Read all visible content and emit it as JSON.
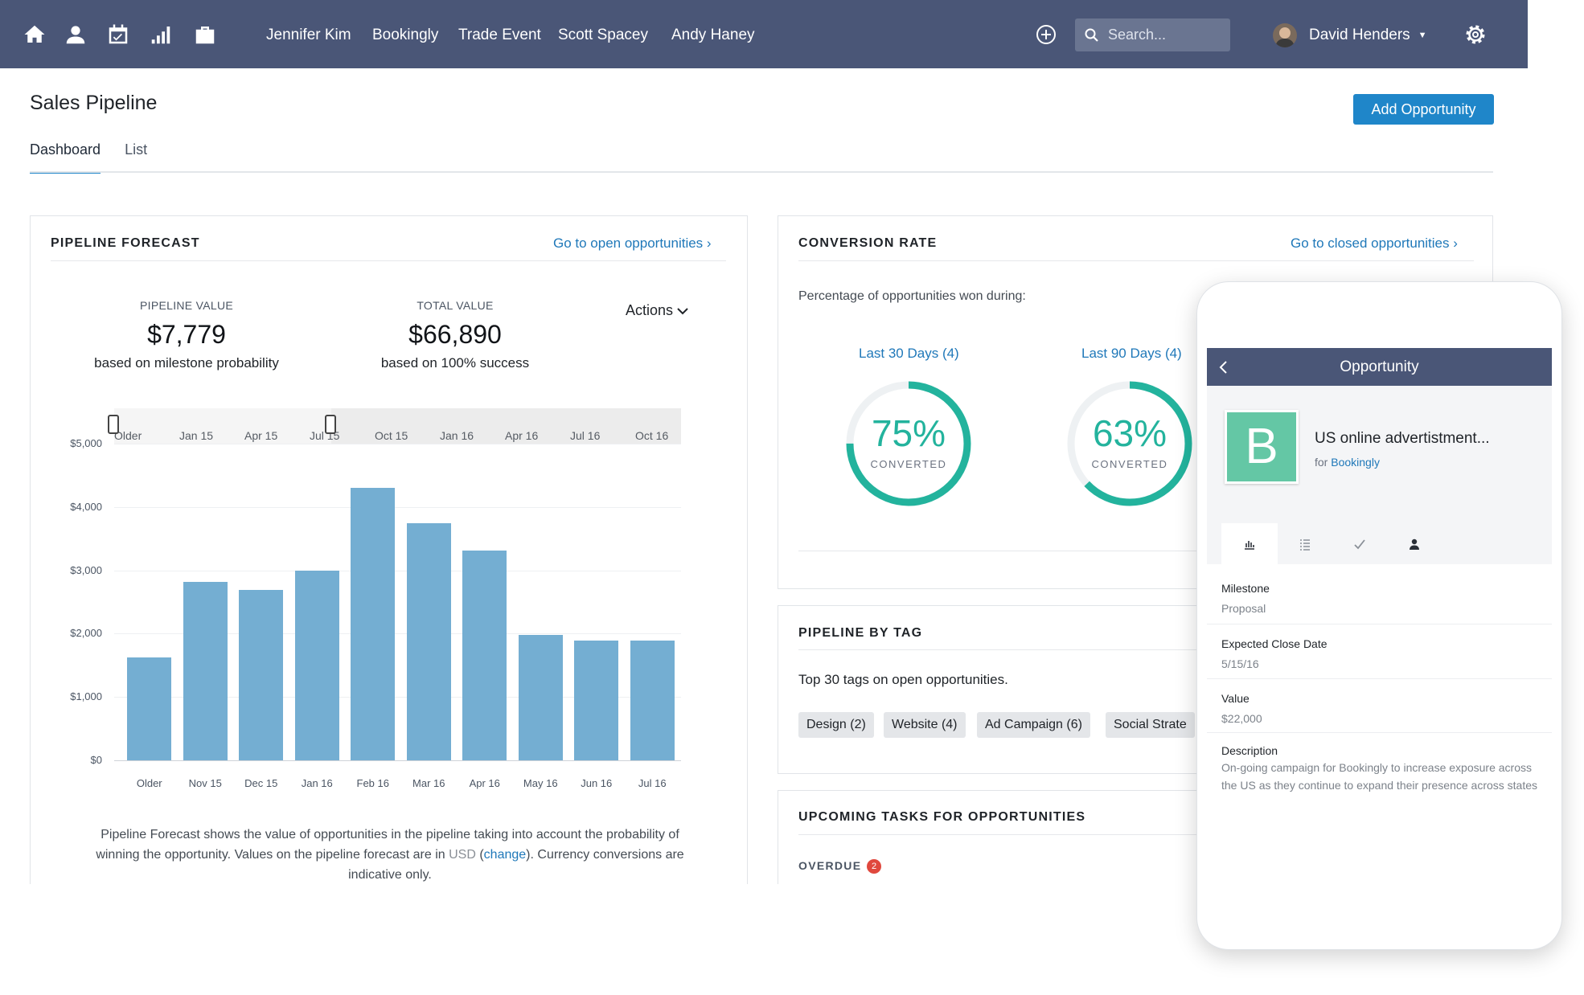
{
  "nav": {
    "icons": [
      "home-icon",
      "contacts-icon",
      "calendar-icon",
      "reports-icon",
      "deals-icon"
    ],
    "recent_items": [
      "Jennifer Kim",
      "Bookingly",
      "Trade Event",
      "Scott Spacey",
      "Andy Haney"
    ],
    "search_placeholder": "Search...",
    "user_name": "David Henders",
    "bar_color": "#4a5677"
  },
  "page": {
    "title": "Sales Pipeline",
    "add_button": "Add Opportunity",
    "tabs": [
      "Dashboard",
      "List"
    ],
    "active_tab": "Dashboard",
    "accent_color": "#1f86c9"
  },
  "forecast": {
    "title": "PIPELINE FORECAST",
    "link": "Go to open opportunities ›",
    "pipeline_label": "PIPELINE VALUE",
    "pipeline_value": "$7,779",
    "pipeline_sub": "based on milestone probability",
    "total_label": "TOTAL VALUE",
    "total_value": "$66,890",
    "total_sub": "based on 100% success",
    "actions": "Actions",
    "range_labels": [
      "Older",
      "Jan 15",
      "Apr 15",
      "Jul 15",
      "Oct 15",
      "Jan 16",
      "Apr 16",
      "Jul 16",
      "Oct 16"
    ],
    "caption_pre": "Pipeline Forecast shows the value of opportunities in the pipeline taking into account the probability of winning the opportunity. Values on the pipeline forecast are in ",
    "caption_currency": "USD",
    "caption_change": "change",
    "caption_post": ". Currency conversions are indicative only."
  },
  "chart_data": {
    "type": "bar",
    "categories": [
      "Older",
      "Nov 15",
      "Dec 15",
      "Jan 16",
      "Feb 16",
      "Mar 16",
      "Apr 16",
      "May 16",
      "Jun 16",
      "Jul 16"
    ],
    "values": [
      1620,
      2820,
      2690,
      2990,
      4300,
      3740,
      3310,
      1980,
      1890,
      1890
    ],
    "ylim": [
      0,
      5000
    ],
    "yticks": [
      "$0",
      "$1,000",
      "$2,000",
      "$3,000",
      "$4,000",
      "$5,000"
    ],
    "grid": true,
    "color": "#74aed2"
  },
  "conversion": {
    "title": "CONVERSION RATE",
    "link": "Go to closed opportunities ›",
    "description": "Percentage of opportunities won during:",
    "periods": [
      {
        "label": "Last 30 Days (4)",
        "percent": 75,
        "percent_text": "75%",
        "sub": "CONVERTED"
      },
      {
        "label": "Last 90 Days (4)",
        "percent": 63,
        "percent_text": "63%",
        "sub": "CONVERTED"
      }
    ],
    "ring_color": "#23b39d"
  },
  "tags": {
    "title": "PIPELINE BY TAG",
    "description": "Top 30 tags on open opportunities.",
    "items": [
      "Design (2)",
      "Website (4)",
      "Ad Campaign (6)",
      "Social Strate"
    ]
  },
  "tasks": {
    "title": "UPCOMING TASKS FOR OPPORTUNITIES",
    "overdue_label": "OVERDUE",
    "overdue_count": "2"
  },
  "mobile": {
    "header": "Opportunity",
    "logo_letter": "B",
    "name": "US online advertistment...",
    "for_prefix": "for",
    "company": "Bookingly",
    "tab_icons": [
      "chart-icon",
      "list-icon",
      "check-icon",
      "person-icon"
    ],
    "details": [
      {
        "label": "Milestone",
        "value": "Proposal"
      },
      {
        "label": "Expected Close Date",
        "value": "5/15/16"
      },
      {
        "label": "Value",
        "value": "$22,000"
      },
      {
        "label": "Description",
        "value": "On-going campaign for Bookingly to increase exposure across the US as they continue to expand their presence across states"
      }
    ]
  }
}
